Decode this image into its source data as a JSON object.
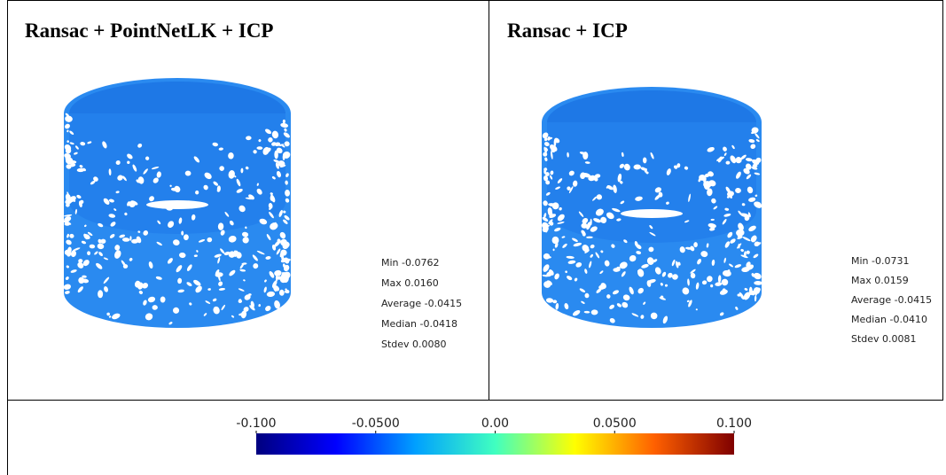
{
  "panels": [
    {
      "title": "Ransac + PointNetLK + ICP",
      "stats": [
        "Min -0.0762",
        "Max 0.0160",
        "Average -0.0415",
        "Median -0.0418",
        "Stdev 0.0080"
      ]
    },
    {
      "title": "Ransac + ICP",
      "stats": [
        "Min -0.0731",
        "Max 0.0159",
        "Average -0.0415",
        "Median -0.0410",
        "Stdev 0.0081"
      ]
    }
  ],
  "colorbar": {
    "range": [
      -0.1,
      0.1
    ],
    "ticks": [
      {
        "value": -0.1,
        "label": "-0.100"
      },
      {
        "value": -0.05,
        "label": "-0.0500"
      },
      {
        "value": 0,
        "label": "0.00"
      },
      {
        "value": 0.05,
        "label": "0.0500"
      },
      {
        "value": 0.1,
        "label": "0.100"
      }
    ],
    "colors": [
      "#00007f",
      "#0000ff",
      "#00a0ff",
      "#40ffc0",
      "#ffff00",
      "#ff6000",
      "#7f0000"
    ]
  }
}
